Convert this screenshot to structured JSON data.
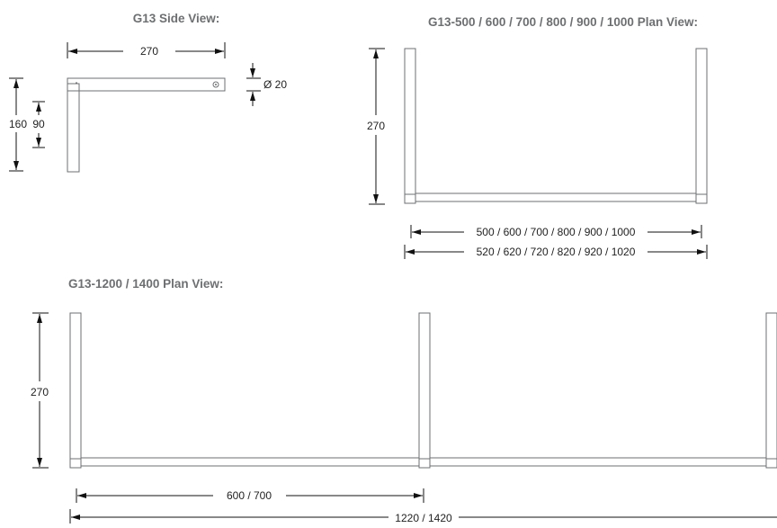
{
  "side_view": {
    "title": "G13 Side View:",
    "width": "270",
    "diameter": "Ø 20",
    "height_outer": "160",
    "height_inner": "90"
  },
  "plan_view_small": {
    "title": "G13-500 / 600 / 700 / 800 / 900 / 1000 Plan View:",
    "depth": "270",
    "inner_widths": "500 / 600 / 700 / 800 / 900 / 1000",
    "outer_widths": "520 / 620 / 720 / 820 / 920 / 1020"
  },
  "plan_view_large": {
    "title": "G13-1200 / 1400 Plan View:",
    "depth": "270",
    "half_width": "600 / 700",
    "total_width": "1220 / 1420"
  }
}
